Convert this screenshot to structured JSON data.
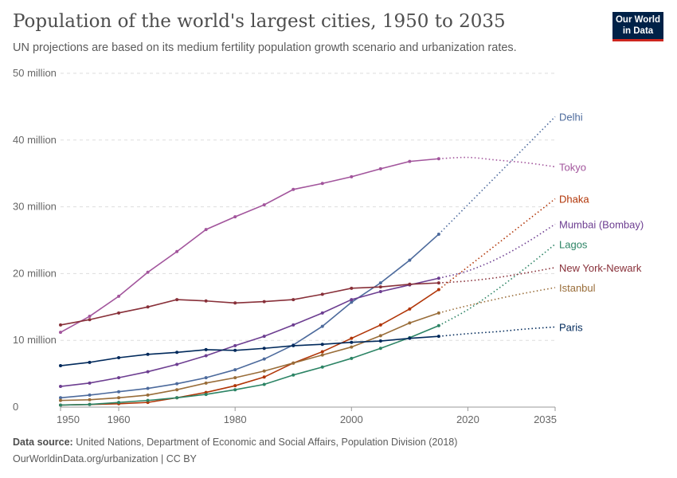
{
  "header": {
    "title": "Population of the world's largest cities, 1950 to 2035",
    "subtitle": "UN projections are based on its medium fertility population growth scenario and urbanization rates.",
    "logo_text": "Our World in Data"
  },
  "footer": {
    "source_label": "Data source:",
    "source_text": "United Nations, Department of Economic and Social Affairs, Population Division (2018)",
    "url_text": "OurWorldinData.org/urbanization | CC BY"
  },
  "chart_data": {
    "type": "line",
    "title": "Population of the world's largest cities, 1950 to 2035",
    "xlabel": "",
    "ylabel": "",
    "xlim": [
      1950,
      2035
    ],
    "ylim": [
      0,
      50000000
    ],
    "x_ticks": [
      1950,
      1960,
      1980,
      2000,
      2020,
      2035
    ],
    "y_ticks": [
      {
        "value": 0,
        "label": "0"
      },
      {
        "value": 10000000,
        "label": "10 million"
      },
      {
        "value": 20000000,
        "label": "20 million"
      },
      {
        "value": 30000000,
        "label": "30 million"
      },
      {
        "value": 40000000,
        "label": "40 million"
      },
      {
        "value": 50000000,
        "label": "50 million"
      }
    ],
    "grid": "horizontal dashed",
    "legend": "inline labels at right end of lines",
    "x": [
      1950,
      1955,
      1960,
      1965,
      1970,
      1975,
      1980,
      1985,
      1990,
      1995,
      2000,
      2005,
      2010,
      2015
    ],
    "projection_x": [
      2015,
      2020,
      2025,
      2030,
      2035
    ],
    "series": [
      {
        "name": "Delhi",
        "color": "#4c6a9c",
        "values": [
          1.4,
          1.8,
          2.3,
          2.8,
          3.5,
          4.4,
          5.6,
          7.2,
          9.3,
          12.1,
          15.7,
          18.6,
          22.0,
          25.9
        ],
        "projection": [
          25.9,
          30.3,
          34.7,
          39.1,
          43.5
        ]
      },
      {
        "name": "Tokyo",
        "color": "#a2559c",
        "values": [
          11.2,
          13.6,
          16.6,
          20.2,
          23.3,
          26.6,
          28.5,
          30.3,
          32.6,
          33.5,
          34.5,
          35.7,
          36.8,
          37.2
        ],
        "projection": [
          37.2,
          37.4,
          37.0,
          36.6,
          36.0
        ]
      },
      {
        "name": "Dhaka",
        "color": "#b13507",
        "values": [
          0.3,
          0.4,
          0.5,
          0.7,
          1.4,
          2.2,
          3.2,
          4.5,
          6.6,
          8.3,
          10.3,
          12.3,
          14.7,
          17.6
        ],
        "projection": [
          17.6,
          21.0,
          24.4,
          27.8,
          31.2
        ]
      },
      {
        "name": "Mumbai (Bombay)",
        "color": "#6d3e91",
        "values": [
          3.1,
          3.6,
          4.4,
          5.3,
          6.4,
          7.7,
          9.2,
          10.6,
          12.3,
          14.1,
          16.1,
          17.3,
          18.3,
          19.3
        ],
        "projection": [
          19.3,
          20.4,
          22.2,
          24.6,
          27.4
        ]
      },
      {
        "name": "Lagos",
        "color": "#2c8465",
        "values": [
          0.3,
          0.4,
          0.7,
          1.0,
          1.4,
          1.9,
          2.6,
          3.4,
          4.8,
          6.0,
          7.3,
          8.8,
          10.4,
          12.2
        ],
        "projection": [
          12.2,
          14.6,
          17.6,
          20.9,
          24.4
        ]
      },
      {
        "name": "New York-Newark",
        "color": "#883039",
        "values": [
          12.3,
          13.1,
          14.1,
          15.0,
          16.1,
          15.9,
          15.6,
          15.8,
          16.1,
          16.9,
          17.8,
          18.0,
          18.4,
          18.6
        ],
        "projection": [
          18.6,
          18.9,
          19.4,
          20.1,
          20.9
        ]
      },
      {
        "name": "Istanbul",
        "color": "#996d39",
        "values": [
          1.0,
          1.1,
          1.4,
          1.8,
          2.6,
          3.6,
          4.4,
          5.4,
          6.6,
          7.8,
          9.0,
          10.7,
          12.6,
          14.1
        ],
        "projection": [
          14.1,
          15.2,
          16.2,
          17.1,
          17.9
        ]
      },
      {
        "name": "Paris",
        "color": "#00295b",
        "values": [
          6.2,
          6.7,
          7.4,
          7.9,
          8.2,
          8.6,
          8.5,
          8.8,
          9.2,
          9.4,
          9.7,
          9.9,
          10.3,
          10.6
        ],
        "projection": [
          10.6,
          11.0,
          11.3,
          11.7,
          12.0
        ]
      }
    ],
    "value_unit_note": "values in millions"
  }
}
